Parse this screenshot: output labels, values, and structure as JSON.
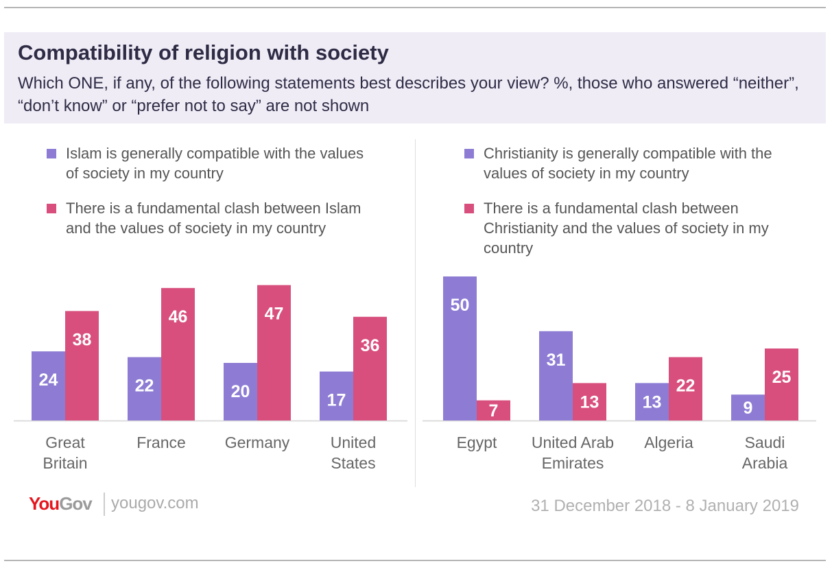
{
  "header": {
    "title": "Compatibility of religion with society",
    "subtitle": "Which ONE, if any, of the following statements best describes your view? %, those who answered “neither”, “don’t know” or “prefer not to say” are not shown"
  },
  "colors": {
    "compatible": "#8e7cd4",
    "clash": "#d84f7e",
    "header_bg": "#efecf6"
  },
  "chart_data": [
    {
      "type": "bar",
      "categories": [
        "Great Britain",
        "France",
        "Germany",
        "United States"
      ],
      "series": [
        {
          "name": "Islam is generally compatible with the values of society in my country",
          "values": [
            24,
            22,
            20,
            17
          ]
        },
        {
          "name": "There is a fundamental clash between Islam and the values of society in my country",
          "values": [
            38,
            46,
            47,
            36
          ]
        }
      ],
      "ylim": [
        0,
        50
      ],
      "grid": false,
      "legend": "top"
    },
    {
      "type": "bar",
      "categories": [
        "Egypt",
        "United Arab Emirates",
        "Algeria",
        "Saudi Arabia"
      ],
      "series": [
        {
          "name": "Christianity is generally compatible with the values of society in my country",
          "values": [
            50,
            31,
            13,
            9
          ]
        },
        {
          "name": "There is a fundamental clash between Christianity and the values of society in my country",
          "values": [
            7,
            13,
            22,
            25
          ]
        }
      ],
      "ylim": [
        0,
        50
      ],
      "grid": false,
      "legend": "top"
    }
  ],
  "footer": {
    "logo": "YouGov",
    "site": "yougov.com",
    "date": "31 December 2018 - 8 January 2019"
  }
}
